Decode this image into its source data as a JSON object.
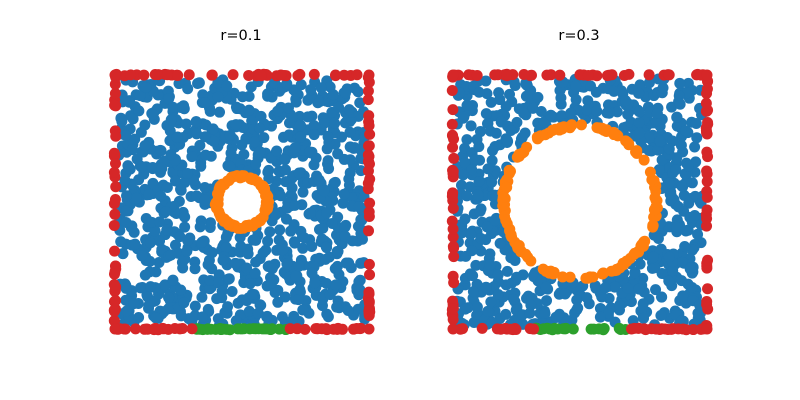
{
  "colors": {
    "interior": "#1f77b4",
    "hole_boundary": "#ff7f0e",
    "bottom_segment": "#2ca02c",
    "outer_boundary": "#d62728"
  },
  "chart_data": [
    {
      "type": "scatter",
      "title": "r=0.1",
      "xlim": [
        -0.5,
        0.5
      ],
      "ylim": [
        -0.5,
        0.5
      ],
      "axes_visible": false,
      "grid": false,
      "hole": {
        "center": [
          0,
          0
        ],
        "radius": 0.1
      },
      "bottom_segment_x": [
        -0.18,
        0.18
      ],
      "series": [
        {
          "role": "interior",
          "color_key": "interior",
          "count": 900
        },
        {
          "role": "hole-boundary",
          "color_key": "hole_boundary",
          "count": 90
        },
        {
          "role": "bottom-segment",
          "color_key": "bottom_segment",
          "count": 28
        },
        {
          "role": "outer-boundary",
          "color_key": "outer_boundary",
          "count": 150
        }
      ]
    },
    {
      "type": "scatter",
      "title": "r=0.3",
      "xlim": [
        -0.5,
        0.5
      ],
      "ylim": [
        -0.5,
        0.5
      ],
      "axes_visible": false,
      "grid": false,
      "hole": {
        "center": [
          0,
          0
        ],
        "radius": 0.3
      },
      "bottom_segment_x": [
        -0.18,
        0.18
      ],
      "series": [
        {
          "role": "interior",
          "color_key": "interior",
          "count": 650
        },
        {
          "role": "hole-boundary",
          "color_key": "hole_boundary",
          "count": 150
        },
        {
          "role": "bottom-segment",
          "color_key": "bottom_segment",
          "count": 22
        },
        {
          "role": "outer-boundary",
          "color_key": "outer_boundary",
          "count": 140
        }
      ]
    }
  ]
}
